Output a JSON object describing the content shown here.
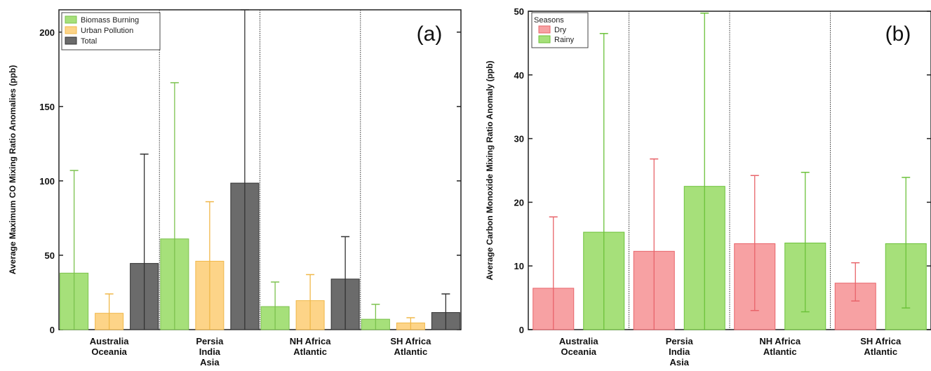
{
  "chart_data": [
    {
      "type": "bar",
      "panel_label": "(a)",
      "ylabel": "Average Maximum CO Mixing Ratio Anomalies (ppb)",
      "ylim": [
        0,
        215
      ],
      "yticks": [
        0,
        50,
        100,
        150,
        200
      ],
      "categories": [
        [
          "Australia",
          "Oceania"
        ],
        [
          "Persia",
          "India",
          "Asia"
        ],
        [
          "NH Africa",
          "Atlantic"
        ],
        [
          "SH Africa",
          "Atlantic"
        ]
      ],
      "legend": {
        "placement": "top-left",
        "title": ""
      },
      "series": [
        {
          "name": "Biomass Burning",
          "color": "#a6e07a",
          "stroke": "#7cc24e",
          "values": [
            38,
            61,
            15.5,
            7
          ],
          "error_upper": [
            107,
            166,
            32,
            17
          ]
        },
        {
          "name": "Urban Pollution",
          "color": "#fdd488",
          "stroke": "#f0b84a",
          "values": [
            11,
            46,
            19.5,
            4.5
          ],
          "error_upper": [
            24,
            86,
            37,
            8
          ]
        },
        {
          "name": "Total",
          "color": "#6b6b6b",
          "stroke": "#333333",
          "values": [
            44.5,
            98.5,
            34,
            11.5
          ],
          "error_upper": [
            118,
            215,
            62.5,
            24
          ]
        }
      ]
    },
    {
      "type": "bar",
      "panel_label": "(b)",
      "ylabel": "Average Carbon Monoxide Mixing Ratio Anomaly (ppb)",
      "ylim": [
        0,
        50
      ],
      "yticks": [
        0,
        10,
        20,
        30,
        40,
        50
      ],
      "categories": [
        [
          "Australia",
          "Oceania"
        ],
        [
          "Persia",
          "India",
          "Asia"
        ],
        [
          "NH Africa",
          "Atlantic"
        ],
        [
          "SH Africa",
          "Atlantic"
        ]
      ],
      "legend": {
        "placement": "top-left",
        "title": "Seasons"
      },
      "series": [
        {
          "name": "Dry",
          "color": "#f7a1a3",
          "stroke": "#e8646a",
          "values": [
            6.5,
            12.3,
            13.5,
            7.3
          ],
          "error_lower": [
            0,
            0,
            3,
            4.5
          ],
          "error_upper": [
            17.7,
            26.8,
            24.2,
            10.5
          ]
        },
        {
          "name": "Rainy",
          "color": "#a6e07a",
          "stroke": "#6cc23a",
          "values": [
            15.3,
            22.5,
            13.6,
            13.5
          ],
          "error_lower": [
            0,
            0,
            2.8,
            3.4
          ],
          "error_upper": [
            46.5,
            49.7,
            24.7,
            23.9
          ]
        }
      ]
    }
  ]
}
